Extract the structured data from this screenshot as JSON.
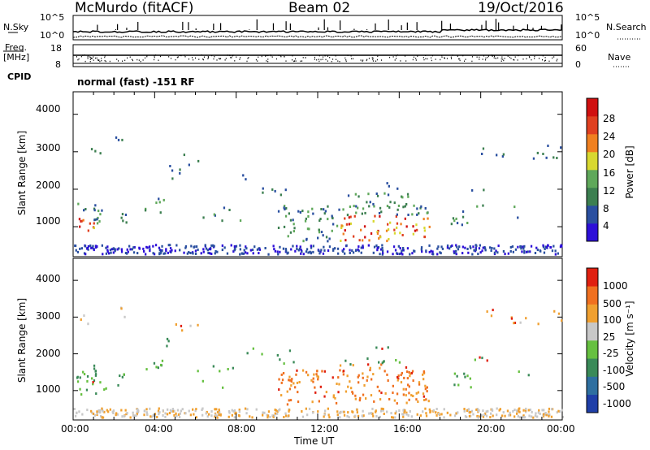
{
  "header": {
    "station": "McMurdo (fitACF)",
    "beam": "Beam 02",
    "date": "19/Oct/2016"
  },
  "status_panels": {
    "nsky_label": "N.Sky",
    "nsearch_label": "N.Search",
    "nsky_ticks": [
      "10^5",
      "10^0"
    ],
    "nsearch_ticks": [
      "10^5",
      "10^0"
    ],
    "freq_label": "Freq.",
    "freq_unit": "[MHz]",
    "freq_ticks": [
      "18",
      "8"
    ],
    "nave_label": "Nave",
    "nave_ticks": [
      "60",
      "0"
    ],
    "cpid_label": "CPID",
    "cpid_value": "normal (fast) -151 RF"
  },
  "chart_data": [
    {
      "type": "heatmap",
      "name": "power",
      "ylabel": "Slant Range [km]",
      "ylim": [
        200,
        4600
      ],
      "yticks": [
        "4000",
        "3000",
        "2000",
        "1000"
      ],
      "colorbar_label": "Power [dB]",
      "colorbar_ticks": [
        "28",
        "24",
        "20",
        "16",
        "12",
        "8",
        "4"
      ],
      "colors": [
        "#2d0fd8",
        "#2a4fa0",
        "#3c7f50",
        "#5fa85a",
        "#d8d830",
        "#f08020",
        "#e04020",
        "#d01010"
      ]
    },
    {
      "type": "heatmap",
      "name": "velocity",
      "ylabel": "Slant Range [km]",
      "ylim": [
        200,
        4600
      ],
      "yticks": [
        "4000",
        "3000",
        "2000",
        "1000"
      ],
      "colorbar_label": "Velocity [m s⁻¹]",
      "colorbar_ticks": [
        "1000",
        "500",
        "100",
        "25",
        "-25",
        "-100",
        "-500",
        "-1000"
      ],
      "colors": [
        "#1f3fa8",
        "#2e6fa0",
        "#3a8a58",
        "#66c040",
        "#c8c8c8",
        "#f0a030",
        "#f07020",
        "#e02010"
      ]
    }
  ],
  "x_axis": {
    "label": "Time UT",
    "ticks": [
      "00:00",
      "04:00",
      "08:00",
      "12:00",
      "16:00",
      "20:00",
      "00:00"
    ]
  }
}
